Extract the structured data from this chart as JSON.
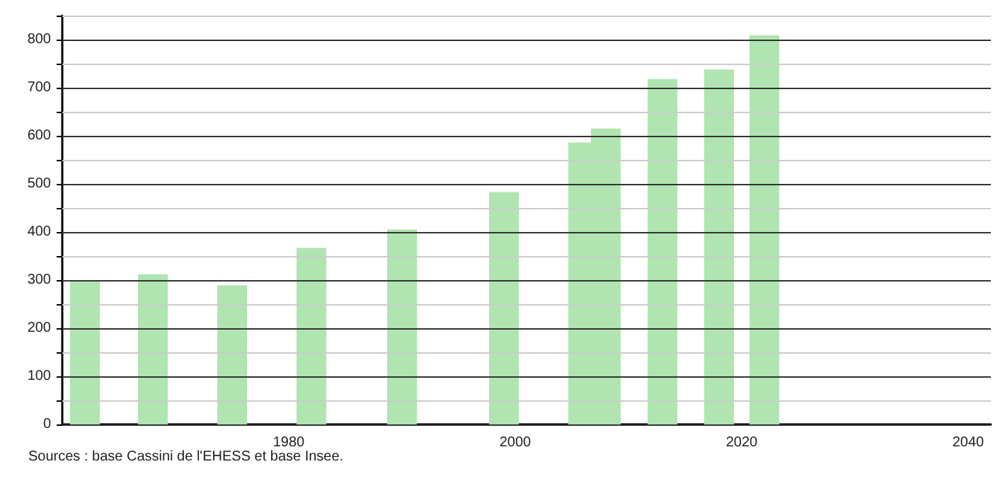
{
  "chart_data": {
    "type": "bar",
    "x": [
      1962,
      1968,
      1975,
      1982,
      1990,
      1999,
      2006,
      2008,
      2013,
      2018,
      2022
    ],
    "values": [
      300,
      312,
      289,
      367,
      405,
      483,
      586,
      615,
      718,
      738,
      809
    ],
    "color": "#b0e4b0",
    "xlim": [
      1960,
      2042
    ],
    "xticks": [
      1980,
      2000,
      2020,
      2040
    ],
    "ylim": [
      0,
      850
    ],
    "yticks": [
      0,
      {
        "value": 50,
        "label": null
      },
      100,
      {
        "value": 150,
        "label": null
      },
      200,
      {
        "value": 250,
        "label": null
      },
      300,
      {
        "value": 350,
        "label": null
      },
      400,
      {
        "value": 450,
        "label": null
      },
      500,
      {
        "value": 550,
        "label": null
      },
      600,
      {
        "value": 650,
        "label": null
      },
      700,
      {
        "value": 750,
        "label": null
      },
      800,
      {
        "value": 850,
        "label": null
      }
    ],
    "grid": "y",
    "annotations": [
      "Sources : base Cassini de l'EHESS et base Insee."
    ]
  }
}
